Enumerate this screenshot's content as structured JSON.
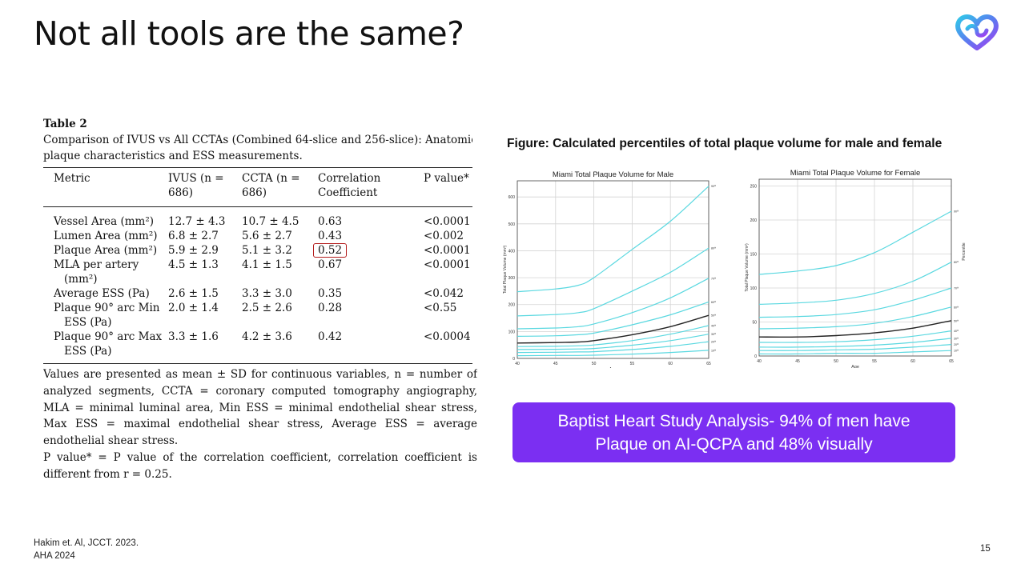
{
  "slide": {
    "title": "Not all tools are the same?",
    "page_number": "15",
    "citation_line1": "Hakim et. Al, JCCT. 2023.",
    "citation_line2": "AHA 2024",
    "banner_line1": "Baptist Heart Study Analysis- 94% of men have",
    "banner_line2": "Plaque on AI-QCPA and 48% visually"
  },
  "table": {
    "label": "Table 2",
    "caption_line1": "Comparison of IVUS vs All CCTAs (Combined 64-slice and 256-slice): Anatomical",
    "caption_line2": "plaque characteristics and ESS measurements.",
    "headers": [
      "Metric",
      "IVUS (n =",
      "686)",
      "CCTA (n =",
      "686)",
      "Correlation",
      "Coefficient",
      "P value*"
    ],
    "rows": [
      {
        "metric": "Vessel Area (mm²)",
        "metric2": "",
        "ivus": "12.7 ± 4.3",
        "ccta": "10.7 ± 4.5",
        "corr": "0.63",
        "p": "<0.0001"
      },
      {
        "metric": "Lumen Area (mm²)",
        "metric2": "",
        "ivus": "6.8 ± 2.7",
        "ccta": "5.6 ± 2.7",
        "corr": "0.43",
        "p": "<0.002"
      },
      {
        "metric": "Plaque Area (mm²)",
        "metric2": "",
        "ivus": "5.9 ± 2.9",
        "ccta": "5.1 ± 3.2",
        "corr": "0.52",
        "p": "<0.0001"
      },
      {
        "metric": "MLA per artery",
        "metric2": "(mm²)",
        "ivus": "4.5 ± 1.3",
        "ccta": "4.1 ± 1.5",
        "corr": "0.67",
        "p": "<0.0001"
      },
      {
        "metric": "Average ESS (Pa)",
        "metric2": "",
        "ivus": "2.6 ± 1.5",
        "ccta": "3.3 ± 3.0",
        "corr": "0.35",
        "p": "<0.042"
      },
      {
        "metric": "Plaque 90° arc Min",
        "metric2": "ESS (Pa)",
        "ivus": "2.0 ± 1.4",
        "ccta": "2.5 ± 2.6",
        "corr": "0.28",
        "p": "<0.55"
      },
      {
        "metric": "Plaque 90° arc Max",
        "metric2": "ESS (Pa)",
        "ivus": "3.3 ± 1.6",
        "ccta": "4.2 ± 3.6",
        "corr": "0.42",
        "p": "<0.0004"
      }
    ],
    "footnote1": "Values are presented as mean ± SD for continuous variables, n = number of analyzed segments, CCTA = coronary computed tomography angiography, MLA = minimal luminal area, Min ESS = minimal endothelial shear stress, Max ESS = maximal endothelial shear stress, Average ESS = average endothelial shear stress.",
    "footnote2": "P value* = P value of the correlation coefficient, correlation coefficient is different from r = 0.25."
  },
  "figure": {
    "title": "Figure: Calculated percentiles of total plaque volume for male and female"
  },
  "chart_data": [
    {
      "type": "line",
      "title": "Miami Total Plaque Volume for Male",
      "xlabel": "Age",
      "ylabel": "Total Plaque Volume (mm³)",
      "right_label": "Percentile",
      "xlim": [
        40,
        65
      ],
      "ylim": [
        0,
        660
      ],
      "xticks": [
        40,
        45,
        50,
        55,
        60,
        65
      ],
      "yticks": [
        0,
        100,
        200,
        300,
        400,
        500,
        600
      ],
      "x": [
        40,
        45,
        48,
        50,
        55,
        60,
        65
      ],
      "series": [
        {
          "name": "90ᵗʰ",
          "values": [
            248,
            258,
            272,
            300,
            405,
            510,
            640
          ]
        },
        {
          "name": "80ᵗʰ",
          "values": [
            158,
            163,
            170,
            185,
            250,
            320,
            410
          ]
        },
        {
          "name": "70ᵗʰ",
          "values": [
            110,
            113,
            118,
            128,
            170,
            225,
            298
          ]
        },
        {
          "name": "60ᵗʰ",
          "values": [
            82,
            84,
            88,
            94,
            125,
            162,
            210
          ]
        },
        {
          "name": "50ᵗʰ",
          "values": [
            57,
            59,
            61,
            66,
            88,
            118,
            160
          ]
        },
        {
          "name": "40ᵗʰ",
          "values": [
            44,
            45,
            47,
            50,
            66,
            90,
            122
          ]
        },
        {
          "name": "30ᵗʰ",
          "values": [
            33,
            34,
            35,
            37,
            49,
            66,
            90
          ]
        },
        {
          "name": "20ᵗʰ",
          "values": [
            22,
            23,
            24,
            25,
            33,
            45,
            62
          ]
        },
        {
          "name": "10ᵗʰ",
          "values": [
            10,
            11,
            11,
            12,
            16,
            22,
            30
          ]
        }
      ]
    },
    {
      "type": "line",
      "title": "Miami Total Plaque Volume for Female",
      "xlabel": "Age",
      "ylabel": "Total Plaque Volume (mm³)",
      "right_label": "Percentile",
      "xlim": [
        40,
        65
      ],
      "ylim": [
        0,
        260
      ],
      "xticks": [
        40,
        45,
        50,
        55,
        60,
        65
      ],
      "yticks": [
        0,
        50,
        100,
        150,
        200,
        250
      ],
      "x": [
        40,
        45,
        50,
        55,
        60,
        65
      ],
      "series": [
        {
          "name": "90ᵗʰ",
          "values": [
            120,
            125,
            133,
            152,
            182,
            213
          ]
        },
        {
          "name": "80ᵗʰ",
          "values": [
            76,
            78,
            82,
            92,
            110,
            138
          ]
        },
        {
          "name": "70ᵗʰ",
          "values": [
            57,
            58,
            61,
            68,
            82,
            100
          ]
        },
        {
          "name": "60ᵗʰ",
          "values": [
            40,
            41,
            43,
            48,
            58,
            72
          ]
        },
        {
          "name": "50ᵗʰ",
          "values": [
            28,
            28,
            30,
            34,
            41,
            52
          ]
        },
        {
          "name": "40ᵗʰ",
          "values": [
            20,
            20,
            21,
            24,
            29,
            37
          ]
        },
        {
          "name": "30ᵗʰ",
          "values": [
            13,
            13,
            14,
            16,
            20,
            26
          ]
        },
        {
          "name": "20ᵗʰ",
          "values": [
            8,
            8,
            9,
            10,
            13,
            17
          ]
        },
        {
          "name": "10ᵗʰ",
          "values": [
            3,
            3,
            4,
            4,
            6,
            8
          ]
        }
      ]
    }
  ],
  "colors": {
    "banner": "#7b2ff2",
    "percentile_line": "#5ad8e0",
    "median_line": "#222222",
    "highlight_box": "#b31b1b"
  }
}
